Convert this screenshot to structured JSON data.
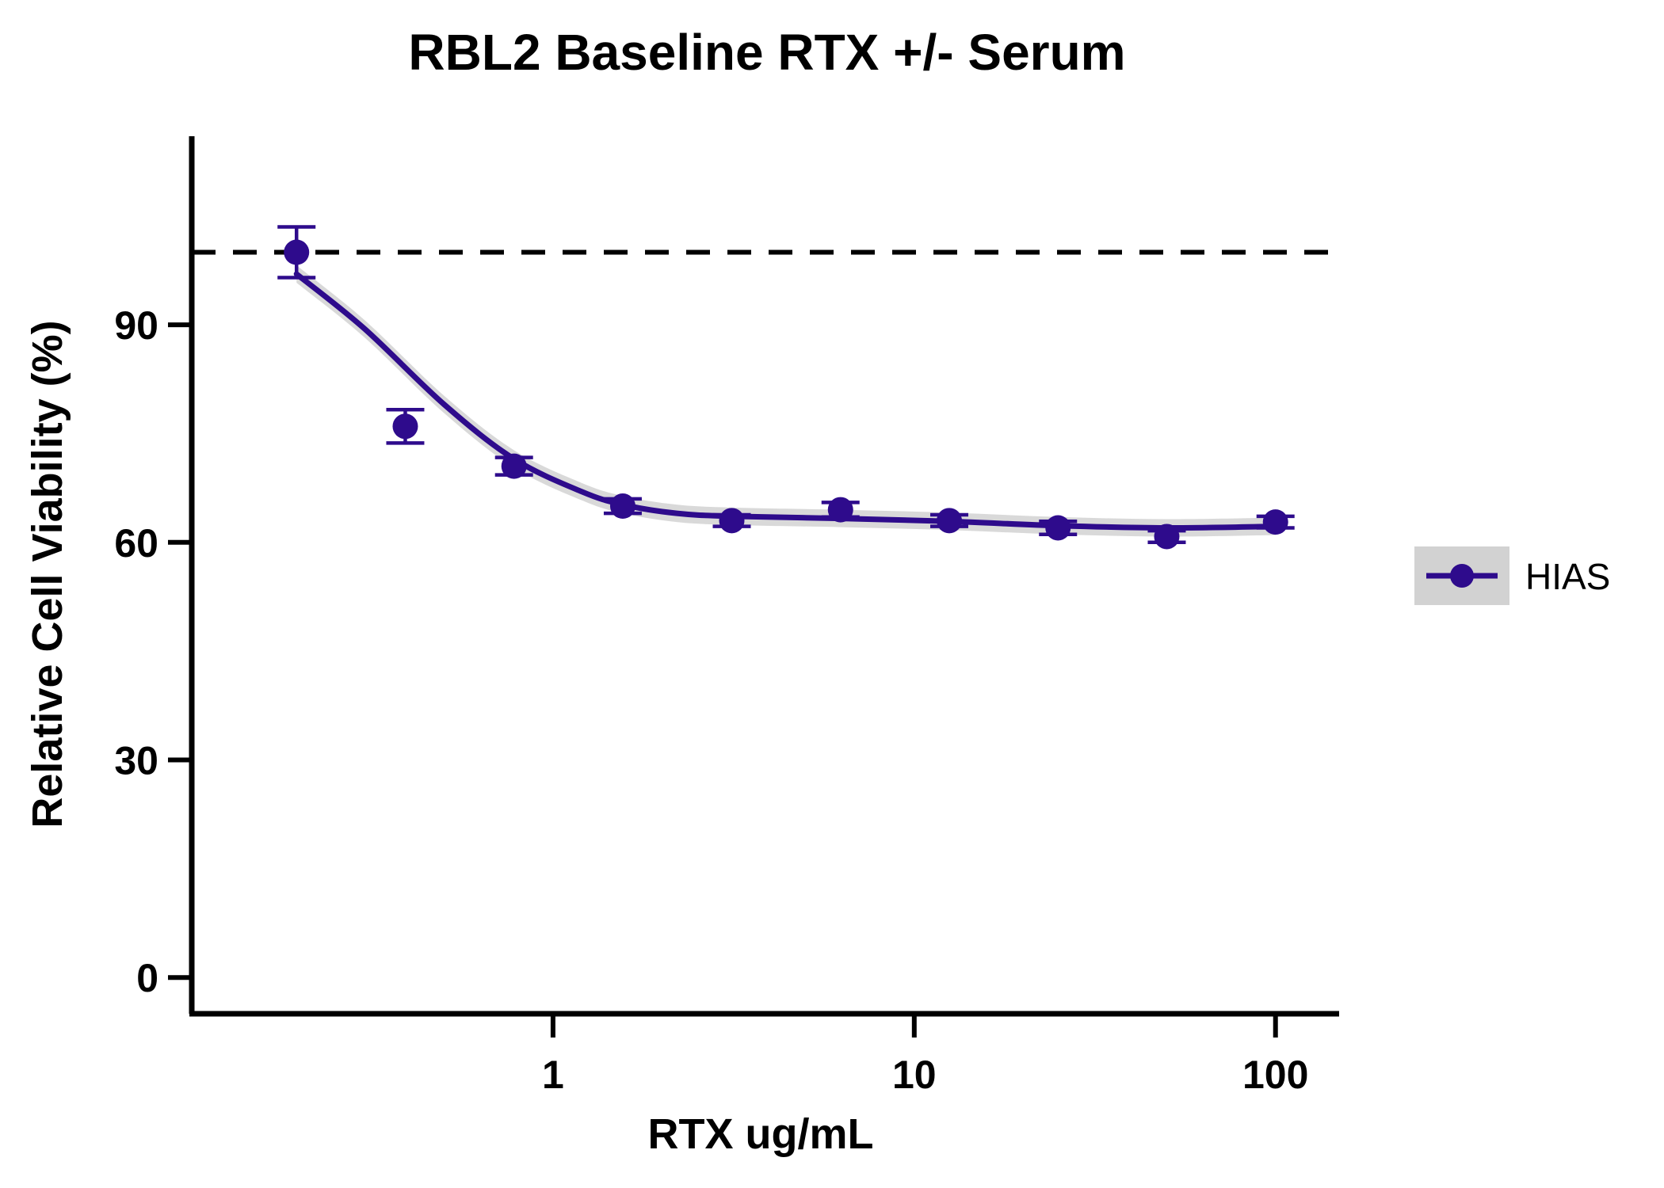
{
  "chart_data": {
    "type": "scatter",
    "title": "RBL2 Baseline RTX +/- Serum",
    "xlabel": "RTX ug/mL",
    "ylabel": "Relative Cell Viability (%)",
    "x_scale": "log",
    "xlim": [
      0.1,
      150
    ],
    "ylim": [
      -5,
      116
    ],
    "x_ticks": [
      1,
      10,
      100
    ],
    "x_tick_labels": [
      "1",
      "10",
      "100"
    ],
    "y_ticks": [
      0,
      30,
      60,
      90
    ],
    "y_tick_labels": [
      "0",
      "30",
      "60",
      "90"
    ],
    "reference_line": 100,
    "grid": false,
    "legend_position": "right",
    "series": [
      {
        "name": "HIAS",
        "color": "#2e0b8c",
        "band_color": "#d2d2d2",
        "x": [
          0.195,
          0.39,
          0.78,
          1.56,
          3.125,
          6.25,
          12.5,
          25,
          50,
          100
        ],
        "y": [
          100,
          76,
          70.5,
          65,
          63,
          64.5,
          63,
          62,
          60.8,
          62.8
        ],
        "error": [
          3.5,
          2.3,
          1.2,
          1.0,
          0.8,
          1.0,
          0.8,
          0.9,
          0.8,
          0.8
        ],
        "fit": [
          [
            0.195,
            97
          ],
          [
            0.3,
            89.5
          ],
          [
            0.5,
            79
          ],
          [
            0.78,
            71.5
          ],
          [
            1.2,
            67
          ],
          [
            1.56,
            65.2
          ],
          [
            2.2,
            64
          ],
          [
            3.125,
            63.6
          ],
          [
            6.25,
            63.3
          ],
          [
            12.5,
            62.9
          ],
          [
            25,
            62.3
          ],
          [
            50,
            62
          ],
          [
            100,
            62.2
          ]
        ]
      }
    ]
  }
}
